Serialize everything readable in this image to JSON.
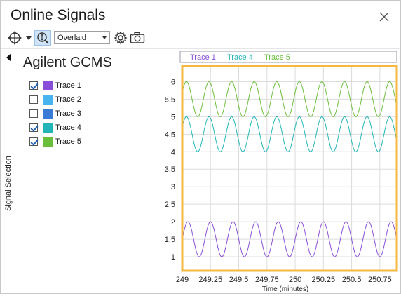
{
  "window": {
    "title": "Online Signals"
  },
  "toolbar": {
    "zoom_icon": "zoom-pan-icon",
    "dropdown_icon": "chevron-down-icon",
    "zoom_y_icon": "zoom-y-icon",
    "mode_value": "Overlaid",
    "settings_icon": "gear-icon",
    "snapshot_icon": "camera-icon"
  },
  "sidebar": {
    "instrument": "Agilent GCMS",
    "panel_label": "Signal Selection",
    "traces": [
      {
        "label": "Trace 1",
        "checked": true,
        "color": "#8a4fd8"
      },
      {
        "label": "Trace 2",
        "checked": false,
        "color": "#47b4f0"
      },
      {
        "label": "Trace 3",
        "checked": false,
        "color": "#3a7bd5"
      },
      {
        "label": "Trace 4",
        "checked": true,
        "color": "#22b5b8"
      },
      {
        "label": "Trace 5",
        "checked": true,
        "color": "#6abf3a"
      }
    ]
  },
  "chart_data": {
    "type": "line",
    "xlabel": "Time (minutes)",
    "ylabel": "",
    "xlim": [
      249,
      250.9
    ],
    "ylim": [
      0.6,
      6.45
    ],
    "x_ticks": [
      249,
      249.25,
      249.5,
      249.75,
      250,
      250.25,
      250.5,
      250.75
    ],
    "x_tick_labels": [
      "249",
      "249.25",
      "249.5",
      "249.75",
      "250",
      "250.25",
      "250.5",
      "250.75"
    ],
    "y_ticks": [
      1,
      1.5,
      2,
      2.5,
      3,
      3.5,
      4,
      4.5,
      5,
      5.5,
      6
    ],
    "y_tick_labels": [
      "1",
      "1.5",
      "2",
      "2.5",
      "3",
      "3.5",
      "4",
      "4.5",
      "5",
      "5.5",
      "6"
    ],
    "grid": true,
    "legend_position": "top",
    "plot_border_color": "#f5b942",
    "series": [
      {
        "name": "Trace 1",
        "color": "#8a4fd8",
        "center": 1.5,
        "amplitude": 0.5,
        "period": 0.2,
        "phase_start_value": 1.5
      },
      {
        "name": "Trace 4",
        "color": "#22b5b8",
        "center": 4.5,
        "amplitude": 0.5,
        "period": 0.2,
        "phase_start_value": 4.7
      },
      {
        "name": "Trace 5",
        "color": "#6abf3a",
        "center": 5.5,
        "amplitude": 0.5,
        "period": 0.2,
        "phase_start_value": 5.7
      }
    ]
  }
}
